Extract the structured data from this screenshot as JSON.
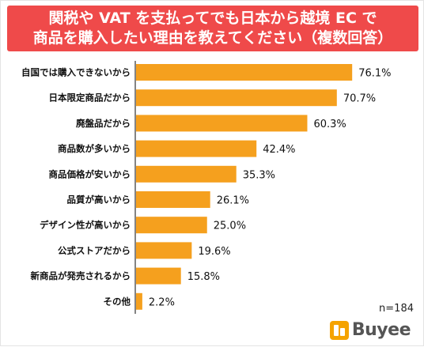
{
  "title": {
    "line1": "関税や VAT を支払ってでも日本から越境 EC で",
    "line2": "商品を購入したい理由を教えてください（複数回答）"
  },
  "note": "n=184",
  "brand": {
    "logo_text": "Buyee"
  },
  "colors": {
    "header": "#ef4a4a",
    "bar": "#f5a01e",
    "axis": "#333333",
    "text": "#111111"
  },
  "chart_data": {
    "type": "bar",
    "orientation": "horizontal",
    "categories": [
      "自国では購入できないから",
      "日本限定商品だから",
      "廃盤品だから",
      "商品数が多いから",
      "商品価格が安いから",
      "品質が高いから",
      "デザイン性が高いから",
      "公式ストアだから",
      "新商品が発売されるから",
      "その他"
    ],
    "values": [
      76.1,
      70.7,
      60.3,
      42.4,
      35.3,
      26.1,
      25.0,
      19.6,
      15.8,
      2.2
    ],
    "value_labels": [
      "76.1%",
      "70.7%",
      "60.3%",
      "42.4%",
      "35.3%",
      "26.1%",
      "25.0%",
      "19.6%",
      "15.8%",
      "2.2%"
    ],
    "xlim": [
      0,
      100
    ],
    "grid": false
  }
}
